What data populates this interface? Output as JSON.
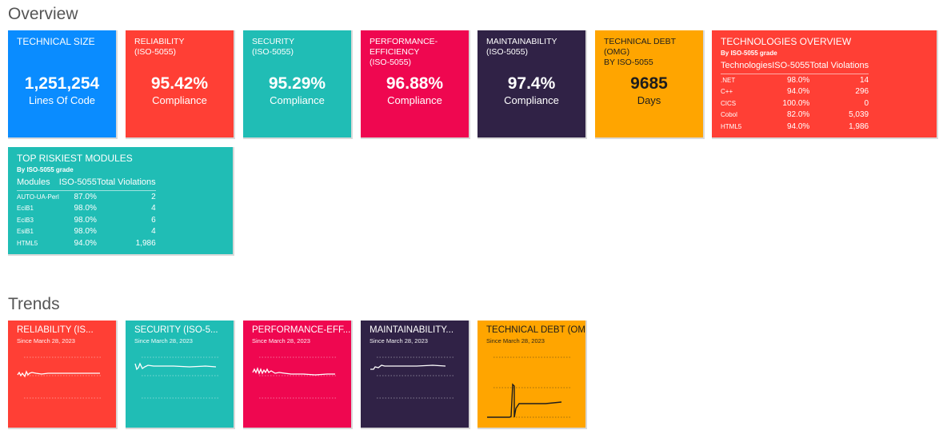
{
  "overview": {
    "title": "Overview",
    "technical_size": {
      "title": "TECHNICAL SIZE",
      "value": "1,251,254",
      "label": "Lines Of Code",
      "color": "#0a8cff"
    },
    "reliability": {
      "title_line1": "RELIABILITY",
      "title_line2": "(ISO-5055)",
      "value": "95.42%",
      "label": "Compliance",
      "color": "#ff3f35"
    },
    "security": {
      "title_line1": "SECURITY",
      "title_line2": "(ISO-5055)",
      "value": "95.29%",
      "label": "Compliance",
      "color": "#20bdb5"
    },
    "performance": {
      "title_line1": "PERFORMANCE-",
      "title_line2": "EFFICIENCY",
      "title_line3": "(ISO-5055)",
      "value": "96.88%",
      "label": "Compliance",
      "color": "#ef0750"
    },
    "maintainability": {
      "title_line1": "MAINTAINABILITY",
      "title_line2": "(ISO-5055)",
      "value": "97.4%",
      "label": "Compliance",
      "color": "#302246"
    },
    "technical_debt": {
      "title_line1": "TECHNICAL DEBT (OMG)",
      "title_line2": "BY ISO-5055",
      "value": "9685",
      "label": "Days",
      "color": "#ffa500"
    },
    "technologies": {
      "title": "TECHNOLOGIES OVERVIEW",
      "subtitle": "By ISO-5055 grade",
      "color": "#ff3f35",
      "headers": [
        "Technologies",
        "ISO-5055",
        "Total Violations"
      ],
      "rows": [
        [
          ".NET",
          "98.0%",
          "14"
        ],
        [
          "C++",
          "94.0%",
          "296"
        ],
        [
          "CICS",
          "100.0%",
          "0"
        ],
        [
          "Cobol",
          "82.0%",
          "5,039"
        ],
        [
          "HTML5",
          "94.0%",
          "1,986"
        ]
      ]
    },
    "riskiest": {
      "title": "TOP RISKIEST MODULES",
      "subtitle": "By ISO-5055 grade",
      "color": "#20bdb5",
      "headers": [
        "Modules",
        "ISO-5055",
        "Total Violations"
      ],
      "rows": [
        [
          "AUTO-UA-Perl",
          "87.0%",
          "2"
        ],
        [
          "EciB1",
          "98.0%",
          "4"
        ],
        [
          "EciB3",
          "98.0%",
          "6"
        ],
        [
          "EsiB1",
          "98.0%",
          "4"
        ],
        [
          "HTML5",
          "94.0%",
          "1,986"
        ]
      ]
    }
  },
  "trends": {
    "title": "Trends",
    "cards": [
      {
        "title": "RELIABILITY (IS...",
        "since": "Since March 28, 2023",
        "color": "#ff3f35",
        "kind": "reliability"
      },
      {
        "title": "SECURITY (ISO-5...",
        "since": "Since March 28, 2023",
        "color": "#20bdb5",
        "kind": "security"
      },
      {
        "title": "PERFORMANCE-EFF...",
        "since": "Since March 28, 2023",
        "color": "#ef0750",
        "kind": "performance"
      },
      {
        "title": "MAINTAINABILITY...",
        "since": "Since March 28, 2023",
        "color": "#302246",
        "kind": "maintainability"
      },
      {
        "title": "TECHNICAL DEBT (OMG...",
        "since": "Since March 28, 2023",
        "color": "#ffa500",
        "kind": "debt"
      }
    ]
  }
}
